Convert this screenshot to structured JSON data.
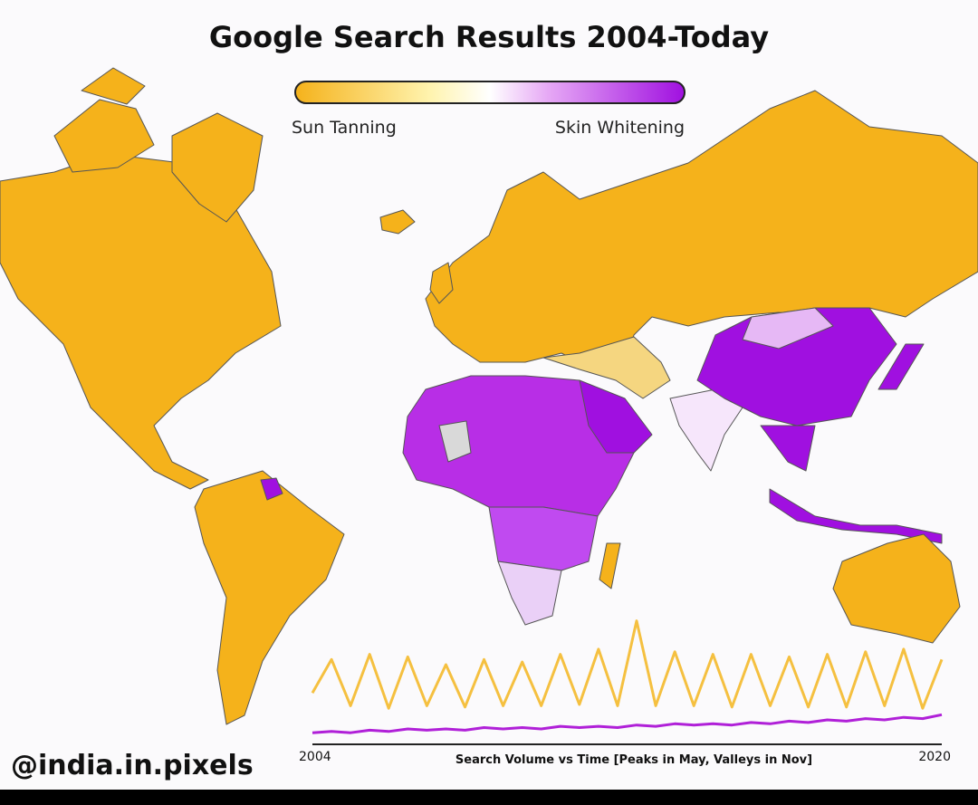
{
  "title": "Google Search Results 2004-Today",
  "legend": {
    "low_label": "Sun Tanning",
    "high_label": "Skin Whitening",
    "low_color": "#f5b21b",
    "high_color": "#a010e0"
  },
  "credit": "@india.in.pixels",
  "inset": {
    "type": "line",
    "x_start_label": "2004",
    "x_end_label": "2020",
    "caption": "Search Volume vs Time [Peaks in May, Valleys in Nov]",
    "ylim": [
      0,
      100
    ],
    "series": [
      {
        "color": "#f5c040",
        "values": [
          40,
          66,
          30,
          70,
          28,
          68,
          30,
          62,
          29,
          66,
          30,
          64,
          30,
          70,
          31,
          74,
          30,
          96,
          30,
          72,
          30,
          70,
          29,
          70,
          30,
          68,
          29,
          70,
          29,
          72,
          30,
          74,
          28,
          66
        ]
      },
      {
        "color": "#b020d8",
        "values": [
          9,
          10,
          9,
          11,
          10,
          12,
          11,
          12,
          11,
          13,
          12,
          13,
          12,
          14,
          13,
          14,
          13,
          15,
          14,
          16,
          15,
          16,
          15,
          17,
          16,
          18,
          17,
          19,
          18,
          20,
          19,
          21,
          20,
          23
        ]
      }
    ]
  }
}
